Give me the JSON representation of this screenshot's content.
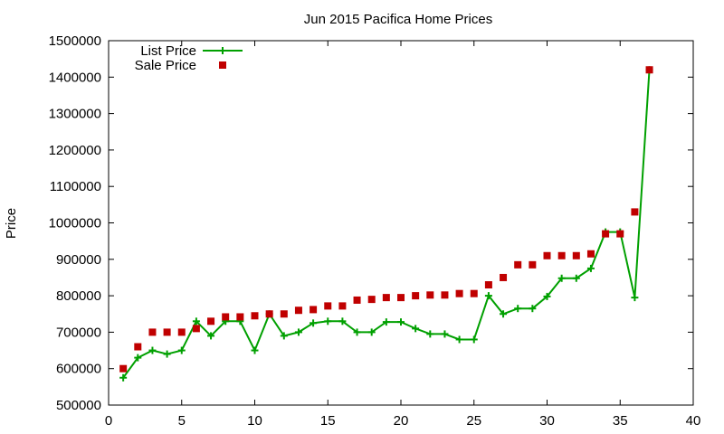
{
  "chart_data": {
    "type": "line",
    "title": "Jun 2015 Pacifica Home Prices",
    "xlabel": "",
    "ylabel": "Price",
    "xlim": [
      0,
      40
    ],
    "ylim": [
      500000,
      1500000
    ],
    "xticks": [
      0,
      5,
      10,
      15,
      20,
      25,
      30,
      35,
      40
    ],
    "yticks": [
      500000,
      600000,
      700000,
      800000,
      900000,
      1000000,
      1100000,
      1200000,
      1300000,
      1400000,
      1500000
    ],
    "grid": false,
    "legend_position": "top-left",
    "series": [
      {
        "name": "List Price",
        "style": "line-plus",
        "color": "#00a000",
        "x": [
          1,
          2,
          3,
          4,
          5,
          6,
          7,
          8,
          9,
          10,
          11,
          12,
          13,
          14,
          15,
          16,
          17,
          18,
          19,
          20,
          21,
          22,
          23,
          24,
          25,
          26,
          27,
          28,
          29,
          30,
          31,
          32,
          33,
          34,
          35,
          36,
          37
        ],
        "values": [
          575000,
          630000,
          650000,
          640000,
          650000,
          730000,
          690000,
          730000,
          730000,
          650000,
          750000,
          690000,
          700000,
          725000,
          730000,
          730000,
          700000,
          700000,
          728000,
          728000,
          710000,
          695000,
          695000,
          680000,
          680000,
          800000,
          750000,
          765000,
          765000,
          798000,
          848000,
          848000,
          875000,
          975000,
          975000,
          795000,
          1420000
        ]
      },
      {
        "name": "Sale Price",
        "style": "square",
        "color": "#c00000",
        "x": [
          1,
          2,
          3,
          4,
          5,
          6,
          7,
          8,
          9,
          10,
          11,
          12,
          13,
          14,
          15,
          16,
          17,
          18,
          19,
          20,
          21,
          22,
          23,
          24,
          25,
          26,
          27,
          28,
          29,
          30,
          31,
          32,
          33,
          34,
          35,
          36,
          37
        ],
        "values": [
          600000,
          660000,
          700000,
          700000,
          700000,
          710000,
          730000,
          742000,
          742000,
          745000,
          750000,
          750000,
          760000,
          762000,
          772000,
          772000,
          788000,
          790000,
          795000,
          795000,
          800000,
          802000,
          802000,
          806000,
          806000,
          830000,
          850000,
          885000,
          885000,
          910000,
          910000,
          910000,
          915000,
          970000,
          970000,
          1030000,
          1420000
        ]
      }
    ]
  }
}
